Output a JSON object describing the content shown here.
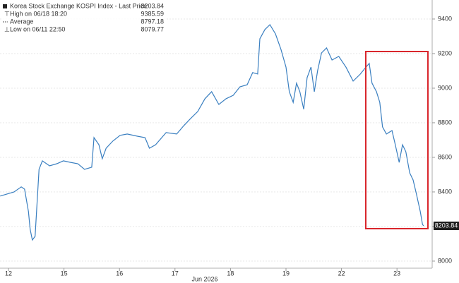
{
  "chart_data": {
    "type": "line",
    "legend": [
      {
        "label": "Korea Stock Exchange KOSPI Index - Last Price",
        "value": 8203.84
      },
      {
        "label": "High on 06/18 18:20",
        "value": 9385.59
      },
      {
        "label": "Average",
        "value": 8797.18
      },
      {
        "label": "Low on 06/11 22:50",
        "value": 8079.77
      }
    ],
    "xlabel": "Jun 2026",
    "x": [
      -0.15,
      0.1,
      0.23,
      0.29,
      0.36,
      0.39,
      0.43,
      0.48,
      0.55,
      0.61,
      0.74,
      0.87,
      0.99,
      1.12,
      1.25,
      1.37,
      1.5,
      1.54,
      1.63,
      1.69,
      1.76,
      1.88,
      2.01,
      2.14,
      2.33,
      2.46,
      2.54,
      2.65,
      2.84,
      3.03,
      3.16,
      3.28,
      3.41,
      3.54,
      3.66,
      3.79,
      3.92,
      4.05,
      4.17,
      4.3,
      4.4,
      4.49,
      4.53,
      4.62,
      4.71,
      4.81,
      4.91,
      5.0,
      5.06,
      5.13,
      5.19,
      5.25,
      5.32,
      5.38,
      5.45,
      5.51,
      5.57,
      5.64,
      5.73,
      5.83,
      5.95,
      6.08,
      6.21,
      6.34,
      6.44,
      6.5,
      6.55,
      6.63,
      6.69,
      6.74,
      6.81,
      6.91,
      6.97,
      7.04,
      7.1,
      7.16,
      7.23,
      7.29,
      7.35,
      7.42,
      7.46,
      7.48
    ],
    "series": [
      {
        "name": "Korea Stock Exchange KOSPI Index",
        "color": "#3a7fc0",
        "values": [
          8376,
          8400,
          8429,
          8416,
          8286,
          8184,
          8122,
          8143,
          8531,
          8580,
          8551,
          8563,
          8580,
          8571,
          8563,
          8531,
          8543,
          8714,
          8673,
          8592,
          8653,
          8694,
          8727,
          8735,
          8722,
          8714,
          8653,
          8673,
          8743,
          8735,
          8784,
          8824,
          8865,
          8939,
          8980,
          8906,
          8939,
          8959,
          9008,
          9020,
          9090,
          9082,
          9286,
          9339,
          9367,
          9314,
          9224,
          9122,
          8980,
          8918,
          9029,
          8980,
          8878,
          9061,
          9122,
          8980,
          9102,
          9204,
          9233,
          9163,
          9184,
          9122,
          9041,
          9082,
          9122,
          9143,
          9029,
          8980,
          8918,
          8776,
          8735,
          8755,
          8673,
          8571,
          8673,
          8633,
          8510,
          8469,
          8388,
          8286,
          8212,
          8203.84
        ]
      }
    ],
    "xlim": [
      -0.153,
      7.634
    ],
    "xticks": [
      {
        "value": 0,
        "label": "12"
      },
      {
        "value": 1,
        "label": "15"
      },
      {
        "value": 2,
        "label": "16"
      },
      {
        "value": 3,
        "label": "17"
      },
      {
        "value": 4,
        "label": "18"
      },
      {
        "value": 5,
        "label": "19"
      },
      {
        "value": 6,
        "label": "22"
      },
      {
        "value": 7,
        "label": "23"
      }
    ],
    "ylim": [
      7959,
      9510
    ],
    "yticks": [
      8000,
      8200,
      8400,
      8600,
      8800,
      9000,
      9200,
      9400
    ],
    "grid": true
  }
}
